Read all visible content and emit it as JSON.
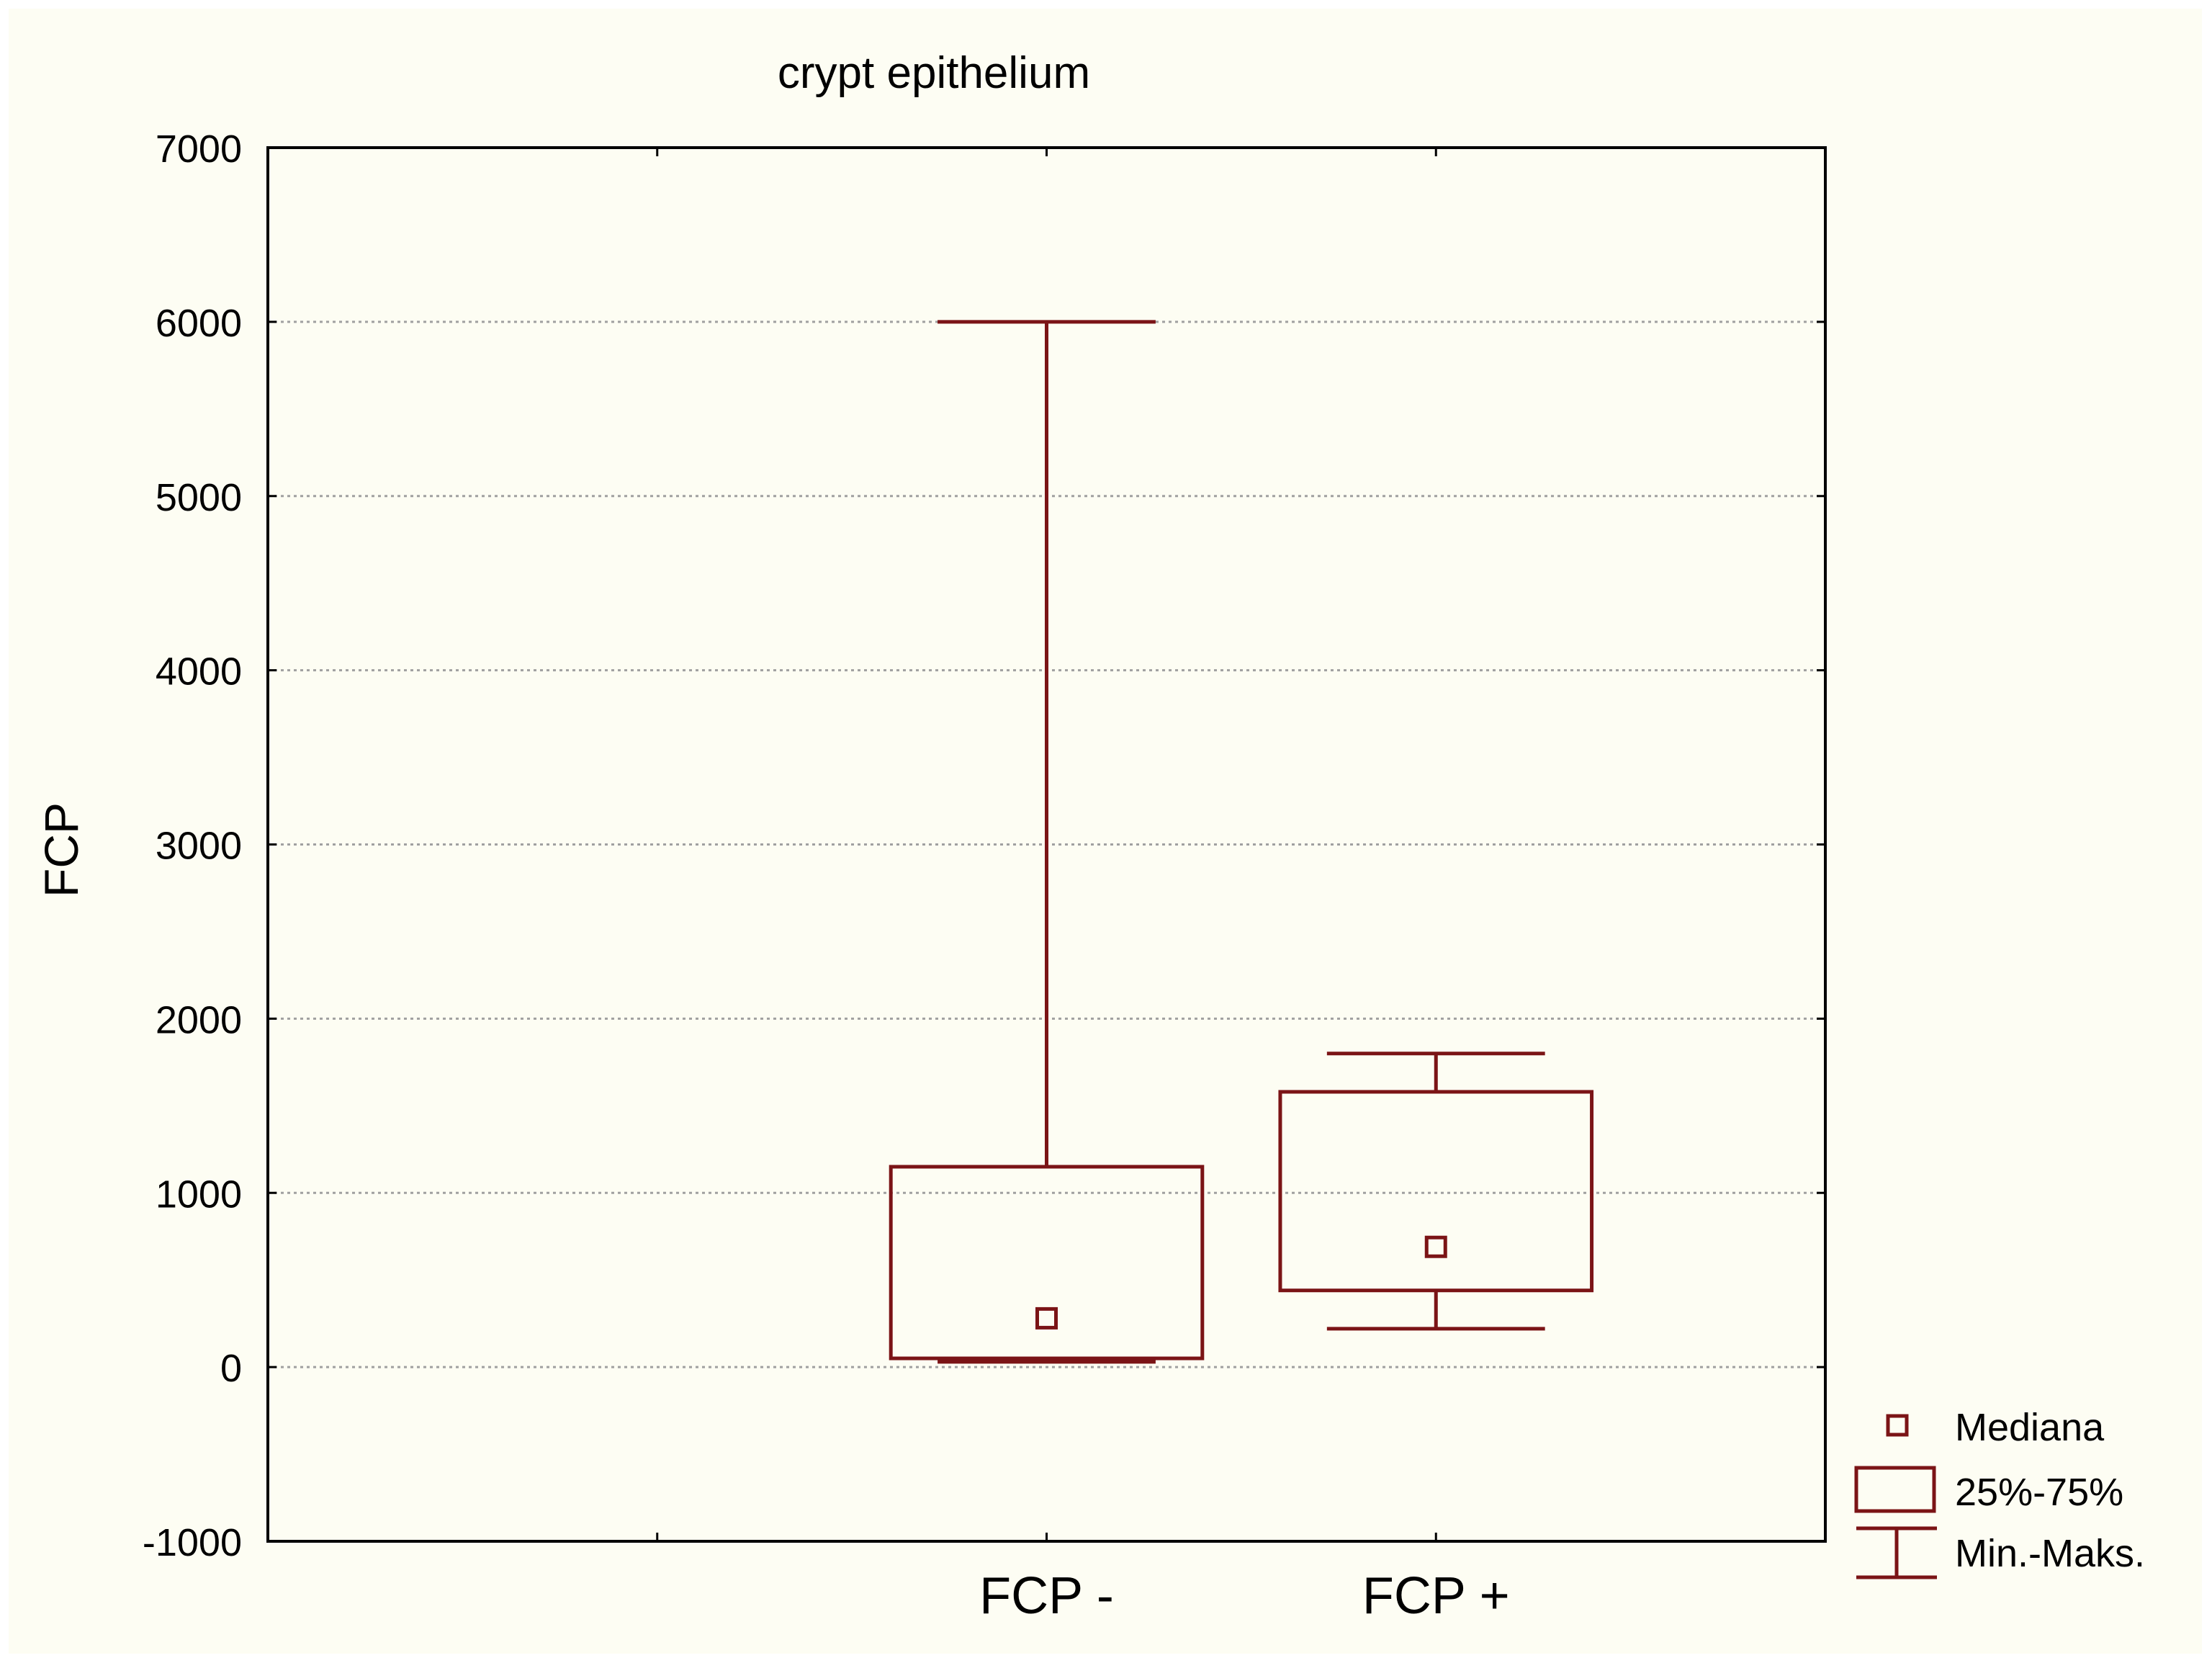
{
  "chart_data": {
    "type": "box",
    "title": "crypt epithelium",
    "ylabel": "FCP",
    "xlabel": "",
    "ylim": [
      -1000,
      7000
    ],
    "yticks": [
      "-1000",
      "0",
      "1000",
      "2000",
      "3000",
      "4000",
      "5000",
      "6000",
      "7000"
    ],
    "grid": true,
    "categories": [
      "FCP -",
      "FCP +"
    ],
    "boxes": [
      {
        "category": "FCP -",
        "min": 30,
        "q1": 50,
        "median": 280,
        "q3": 1150,
        "max": 6000
      },
      {
        "category": "FCP +",
        "min": 220,
        "q1": 440,
        "median": 690,
        "q3": 1580,
        "max": 1800
      }
    ],
    "legend": {
      "position": "bottom-right",
      "items": [
        "Mediana",
        "25%-75%",
        "Min.-Maks."
      ]
    },
    "colors": {
      "series": "#7b1416",
      "grid": "#a0a0a0",
      "background": "#fdfdf3"
    }
  }
}
